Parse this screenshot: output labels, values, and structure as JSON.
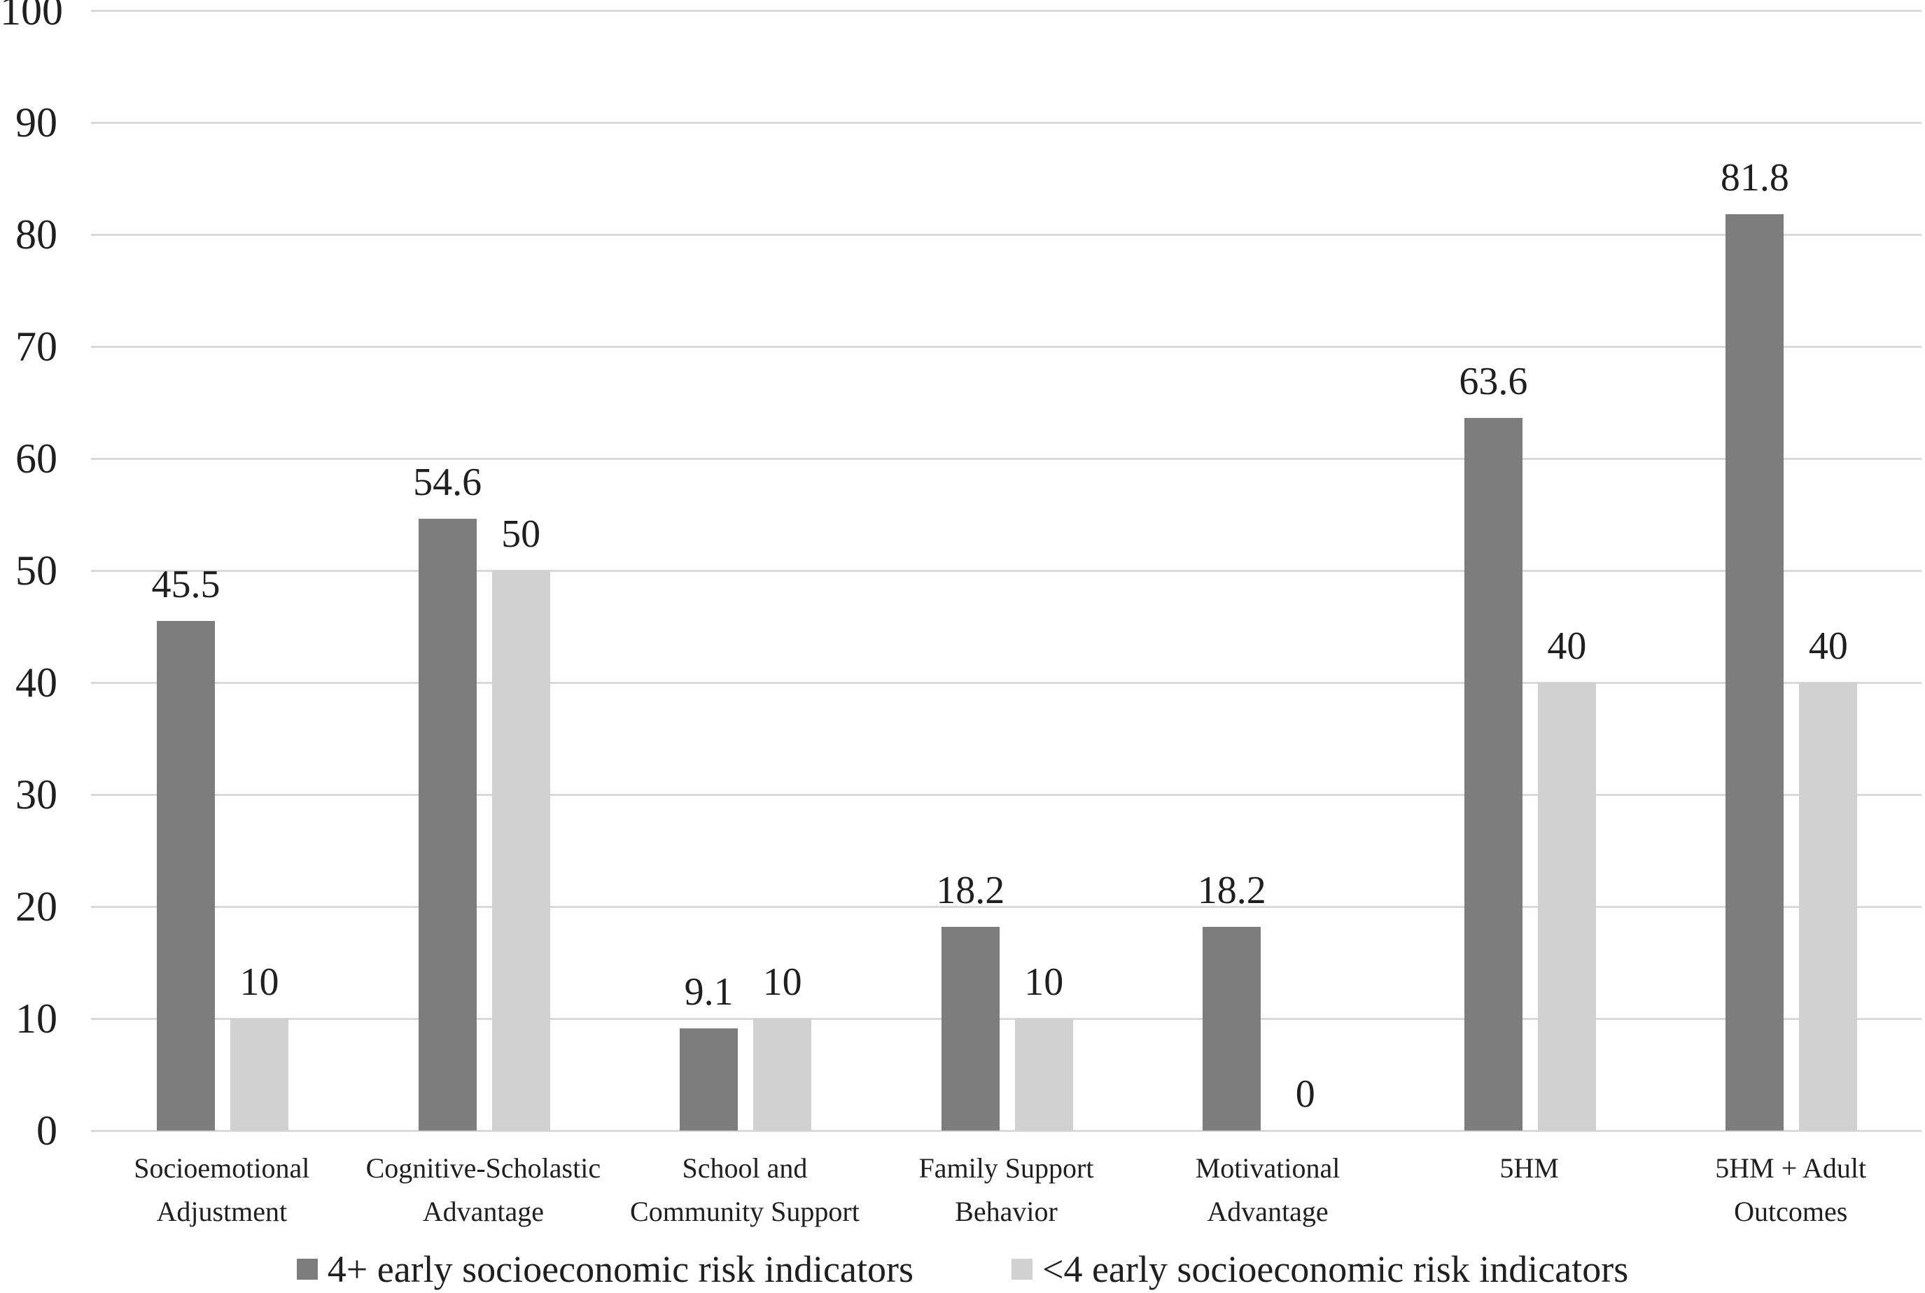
{
  "chart_data": {
    "type": "bar",
    "title": "",
    "xlabel": "",
    "ylabel": "",
    "categories": [
      [
        "Socioemotional",
        "Adjustment"
      ],
      [
        "Cognitive-Scholastic",
        "Advantage"
      ],
      [
        "School and",
        "Community Support"
      ],
      [
        "Family Support",
        "Behavior"
      ],
      [
        "Motivational",
        "Advantage"
      ],
      [
        "5HM"
      ],
      [
        "5HM + Adult",
        "Outcomes"
      ]
    ],
    "series": [
      {
        "name": "4+ early socioeconomic risk indicators",
        "color": "#7d7d7d",
        "values": [
          45.5,
          54.6,
          9.1,
          18.2,
          18.2,
          63.6,
          81.8
        ],
        "labels": [
          "45.5",
          "54.6",
          "9.1",
          "18.2",
          "18.2",
          "63.6",
          "81.8"
        ]
      },
      {
        "name": "<4 early socioeconomic risk indicators",
        "color": "#d1d1d1",
        "values": [
          10,
          50,
          10,
          10,
          0,
          40,
          40
        ],
        "labels": [
          "10",
          "50",
          "10",
          "10",
          "0",
          "40",
          "40"
        ]
      }
    ],
    "ylim": [
      0,
      100
    ],
    "yticks": [
      "0",
      "10",
      "20",
      "30",
      "40",
      "50",
      "60",
      "70",
      "80",
      "90",
      "100"
    ],
    "grid": "horizontal",
    "gridline_color": "#d9d9d9",
    "text_color": "#1f1f1f",
    "legend_position": "bottom"
  }
}
